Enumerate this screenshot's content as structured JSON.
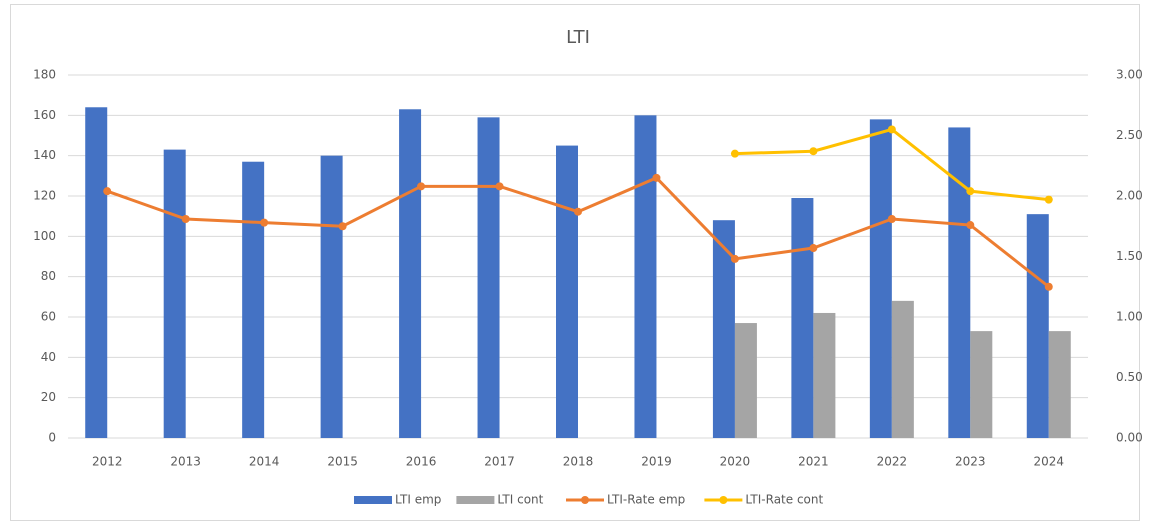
{
  "chart_data": {
    "type": "combo",
    "title": "LTI",
    "categories": [
      "2012",
      "2013",
      "2014",
      "2015",
      "2016",
      "2017",
      "2018",
      "2019",
      "2020",
      "2021",
      "2022",
      "2023",
      "2024"
    ],
    "series": [
      {
        "name": "LTI emp",
        "type": "bar",
        "color": "#4472c4",
        "values": [
          164,
          143,
          137,
          140,
          163,
          159,
          145,
          160,
          108,
          119,
          158,
          154,
          111
        ]
      },
      {
        "name": "LTI cont",
        "type": "bar",
        "color": "#a5a5a5",
        "values": [
          null,
          null,
          null,
          null,
          null,
          null,
          null,
          null,
          57,
          62,
          68,
          53,
          53
        ]
      },
      {
        "name": "LTI-Rate emp",
        "type": "line",
        "axis": "y2",
        "color": "#ed7d31",
        "values": [
          2.04,
          1.81,
          1.78,
          1.75,
          2.08,
          2.08,
          1.87,
          2.15,
          1.48,
          1.57,
          1.81,
          1.76,
          1.25
        ]
      },
      {
        "name": "LTI-Rate cont",
        "type": "line",
        "axis": "y2",
        "color": "#ffc000",
        "values": [
          null,
          null,
          null,
          null,
          null,
          null,
          null,
          null,
          2.35,
          2.37,
          2.55,
          2.04,
          1.97
        ]
      }
    ],
    "ylim": [
      0,
      180
    ],
    "yticks": [
      0,
      20,
      40,
      60,
      80,
      100,
      120,
      140,
      160,
      180
    ],
    "y2lim": [
      0,
      3
    ],
    "y2ticks": [
      {
        "value": 0,
        "label": "0.00"
      },
      {
        "value": 0.5,
        "label": "0.50"
      },
      {
        "value": 1,
        "label": "1.00"
      },
      {
        "value": 1.5,
        "label": "1.50"
      },
      {
        "value": 2,
        "label": "2.00"
      },
      {
        "value": 2.5,
        "label": "2.50"
      },
      {
        "value": 3,
        "label": "3.00"
      }
    ],
    "grid": true,
    "legend": "bottom"
  }
}
